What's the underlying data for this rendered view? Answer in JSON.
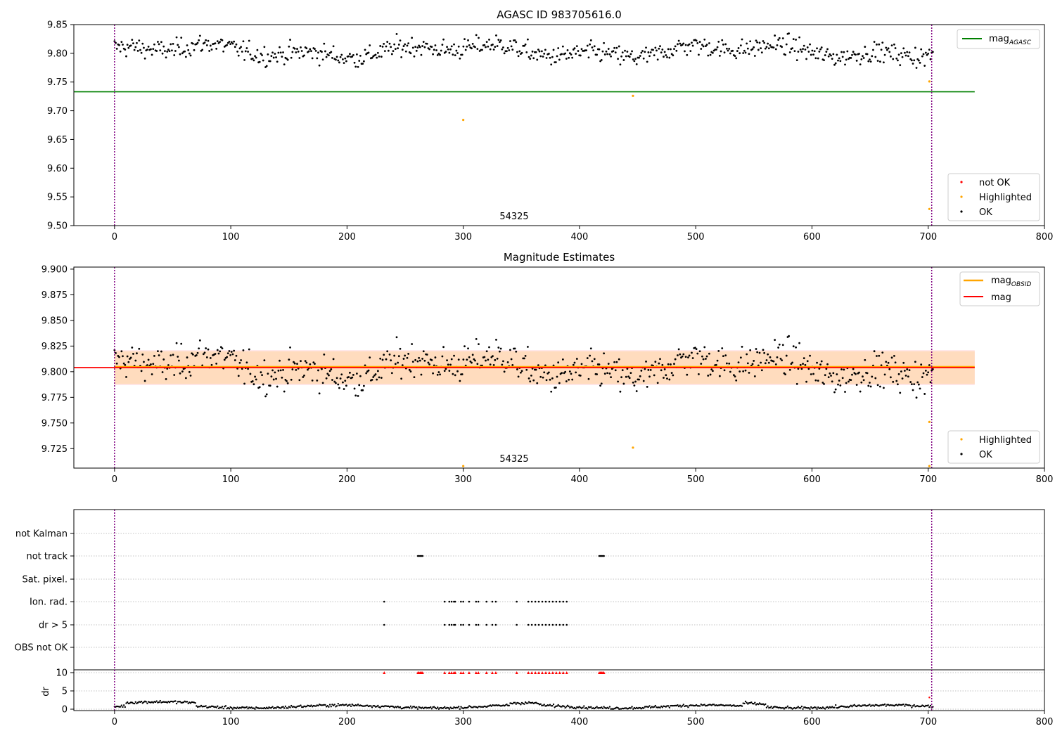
{
  "chart_data": [
    {
      "type": "scatter",
      "title": "AGASC ID 983705616.0",
      "xlabel": "",
      "ylabel": "",
      "xlim": [
        -35,
        800
      ],
      "ylim": [
        9.5,
        9.85
      ],
      "x_ticks": [
        "0",
        "100",
        "200",
        "300",
        "400",
        "500",
        "600",
        "700",
        "800"
      ],
      "y_ticks": [
        "9.50",
        "9.55",
        "9.60",
        "9.65",
        "9.70",
        "9.75",
        "9.80",
        "9.85"
      ],
      "y_tick_values": [
        9.5,
        9.55,
        9.6,
        9.65,
        9.7,
        9.75,
        9.8,
        9.85
      ],
      "annotation": "54325",
      "mag_agasc": 9.733,
      "obs_boundaries": [
        0,
        703
      ],
      "ok_points": {
        "x_start": 0,
        "x_end": 704,
        "count": 700,
        "y_min": 9.762,
        "y_max": 9.848,
        "y_mean": 9.804
      },
      "highlighted_points": [
        {
          "x": 300,
          "y": 9.684
        },
        {
          "x": 446,
          "y": 9.726
        },
        {
          "x": 701,
          "y": 9.751
        },
        {
          "x": 701,
          "y": 9.529
        }
      ],
      "not_ok_points": [],
      "legend_top": [
        "mag",
        "AGASC"
      ],
      "legend_bottom": [
        "not OK",
        "Highlighted",
        "OK"
      ],
      "grid": false,
      "colors": {
        "ok": "#000000",
        "highlighted": "#ffa500",
        "not_ok": "#ff0000",
        "mag_agasc": "#008000",
        "boundary": "#800080"
      }
    },
    {
      "type": "scatter",
      "title": "Magnitude Estimates",
      "xlabel": "",
      "ylabel": "",
      "xlim": [
        -35,
        800
      ],
      "ylim": [
        9.706,
        9.902
      ],
      "x_ticks": [
        "0",
        "100",
        "200",
        "300",
        "400",
        "500",
        "600",
        "700",
        "800"
      ],
      "y_ticks": [
        "9.725",
        "9.750",
        "9.775",
        "9.800",
        "9.825",
        "9.850",
        "9.875",
        "9.900"
      ],
      "y_tick_values": [
        9.725,
        9.75,
        9.775,
        9.8,
        9.825,
        9.85,
        9.875,
        9.9
      ],
      "annotation": "54325",
      "mag_obsid": 9.804,
      "mag": 9.804,
      "band_obsid": [
        9.788,
        9.82
      ],
      "band_mag": [
        9.787,
        9.821
      ],
      "band_x_end": 740,
      "obs_boundaries": [
        0,
        703
      ],
      "highlighted_points": [
        {
          "x": 300,
          "y": 9.708
        },
        {
          "x": 446,
          "y": 9.726
        },
        {
          "x": 701,
          "y": 9.751
        },
        {
          "x": 701,
          "y": 9.708
        }
      ],
      "legend_top": [
        [
          "mag",
          "OBSID"
        ],
        [
          "mag",
          ""
        ]
      ],
      "legend_bottom": [
        "Highlighted",
        "OK"
      ],
      "grid": false,
      "colors": {
        "ok": "#000000",
        "highlighted": "#ffa500",
        "mag": "#ff0000",
        "mag_obsid": "#ffa500",
        "band_obsid": "#ffdab9",
        "band_mag": "#ffe4e8"
      }
    },
    {
      "type": "scatter",
      "title": "",
      "xlim": [
        -35,
        800
      ],
      "x_ticks": [
        "0",
        "100",
        "200",
        "300",
        "400",
        "500",
        "600",
        "700",
        "800"
      ],
      "flag_labels": [
        "not Kalman",
        "not track",
        "Sat. pixel.",
        "Ion. rad.",
        "dr > 5",
        "OBS not OK"
      ],
      "flags": {
        "not Kalman": [],
        "not track": [
          261,
          262,
          263,
          264,
          265,
          417,
          418,
          419,
          420,
          421
        ],
        "Sat. pixel.": [],
        "Ion. rad.": [
          232,
          284,
          288,
          290,
          292,
          293,
          298,
          300,
          305,
          311,
          313,
          320,
          325,
          328,
          346,
          356,
          359,
          362,
          365,
          368,
          371,
          374,
          377,
          380,
          383,
          386,
          389
        ],
        "dr > 5": [
          232,
          284,
          288,
          290,
          292,
          293,
          298,
          300,
          305,
          311,
          313,
          320,
          325,
          328,
          346,
          356,
          359,
          362,
          365,
          368,
          371,
          374,
          377,
          380,
          383,
          386,
          389
        ],
        "OBS not OK": []
      },
      "dr_ylabel": "dr",
      "dr_ylim": [
        0,
        10
      ],
      "dr_ticks": [
        "0",
        "5",
        "10"
      ],
      "dr_tick_values": [
        0,
        5,
        10
      ],
      "dr_clipped_x": [
        232,
        261,
        262,
        263,
        264,
        265,
        284,
        288,
        290,
        292,
        293,
        298,
        300,
        305,
        311,
        313,
        320,
        325,
        328,
        346,
        356,
        359,
        362,
        365,
        368,
        371,
        374,
        377,
        380,
        383,
        386,
        389,
        417,
        418,
        419,
        420,
        421
      ],
      "dr_points": {
        "x_start": 0,
        "x_end": 704,
        "count": 700,
        "typical": 0.7
      },
      "dr_highlighted": [
        {
          "x": 701,
          "y": 3.2
        }
      ],
      "obs_boundaries": [
        0,
        703
      ],
      "colors": {
        "points": "#000000",
        "clipped": "#ff0000",
        "boundary": "#800080",
        "grid": "#b0b0b0"
      }
    }
  ]
}
